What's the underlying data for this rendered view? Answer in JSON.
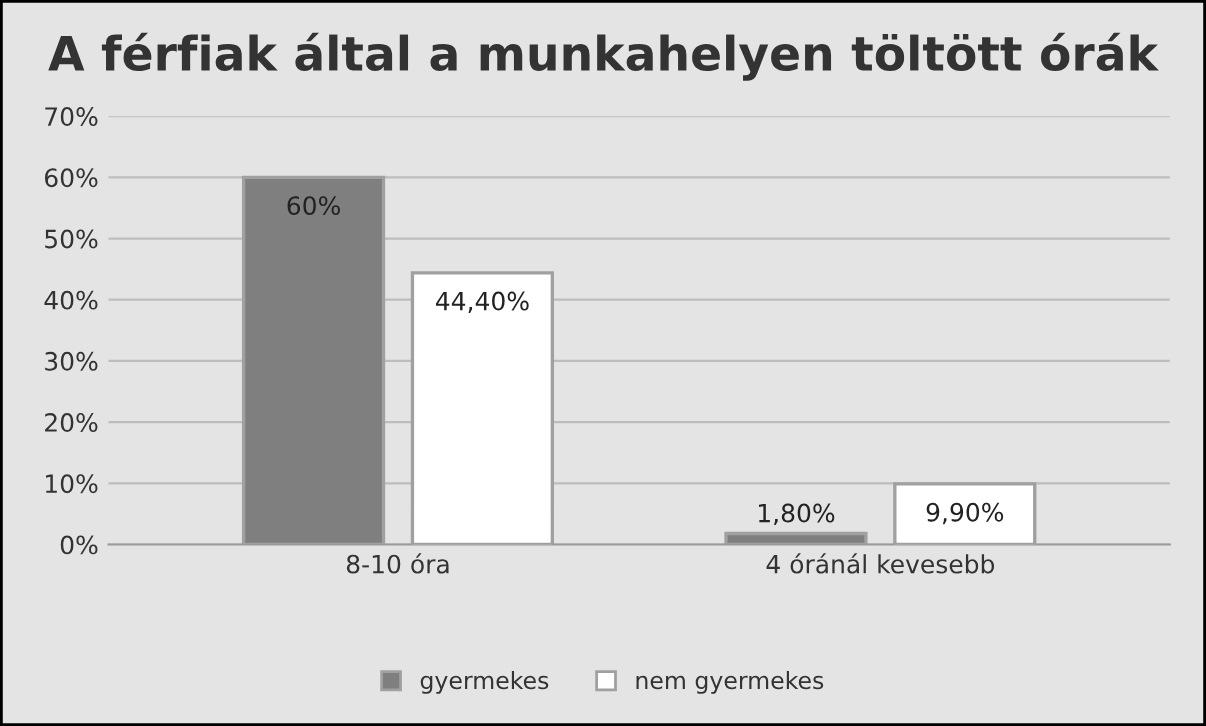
{
  "chart_data": {
    "type": "bar",
    "title": "A férfiak által a munkahelyen töltött órák",
    "categories": [
      "8-10 óra",
      "4 óránál kevesebb"
    ],
    "series": [
      {
        "name": "gyermekes",
        "color": "#7f7f7f",
        "values": [
          60,
          1.8
        ],
        "value_labels": [
          "60%",
          "1,80%"
        ]
      },
      {
        "name": "nem gyermekes",
        "color": "#ffffff",
        "values": [
          44.4,
          9.9
        ],
        "value_labels": [
          "44,40%",
          "9,90%"
        ]
      }
    ],
    "ylim": [
      0,
      70
    ],
    "yticks": [
      {
        "value": 0,
        "label": "0%"
      },
      {
        "value": 10,
        "label": "10%"
      },
      {
        "value": 20,
        "label": "20%"
      },
      {
        "value": 30,
        "label": "30%"
      },
      {
        "value": 40,
        "label": "40%"
      },
      {
        "value": 50,
        "label": "50%"
      },
      {
        "value": 60,
        "label": "60%"
      },
      {
        "value": 70,
        "label": "70%"
      }
    ],
    "grid": "y",
    "legend": "bottom"
  }
}
